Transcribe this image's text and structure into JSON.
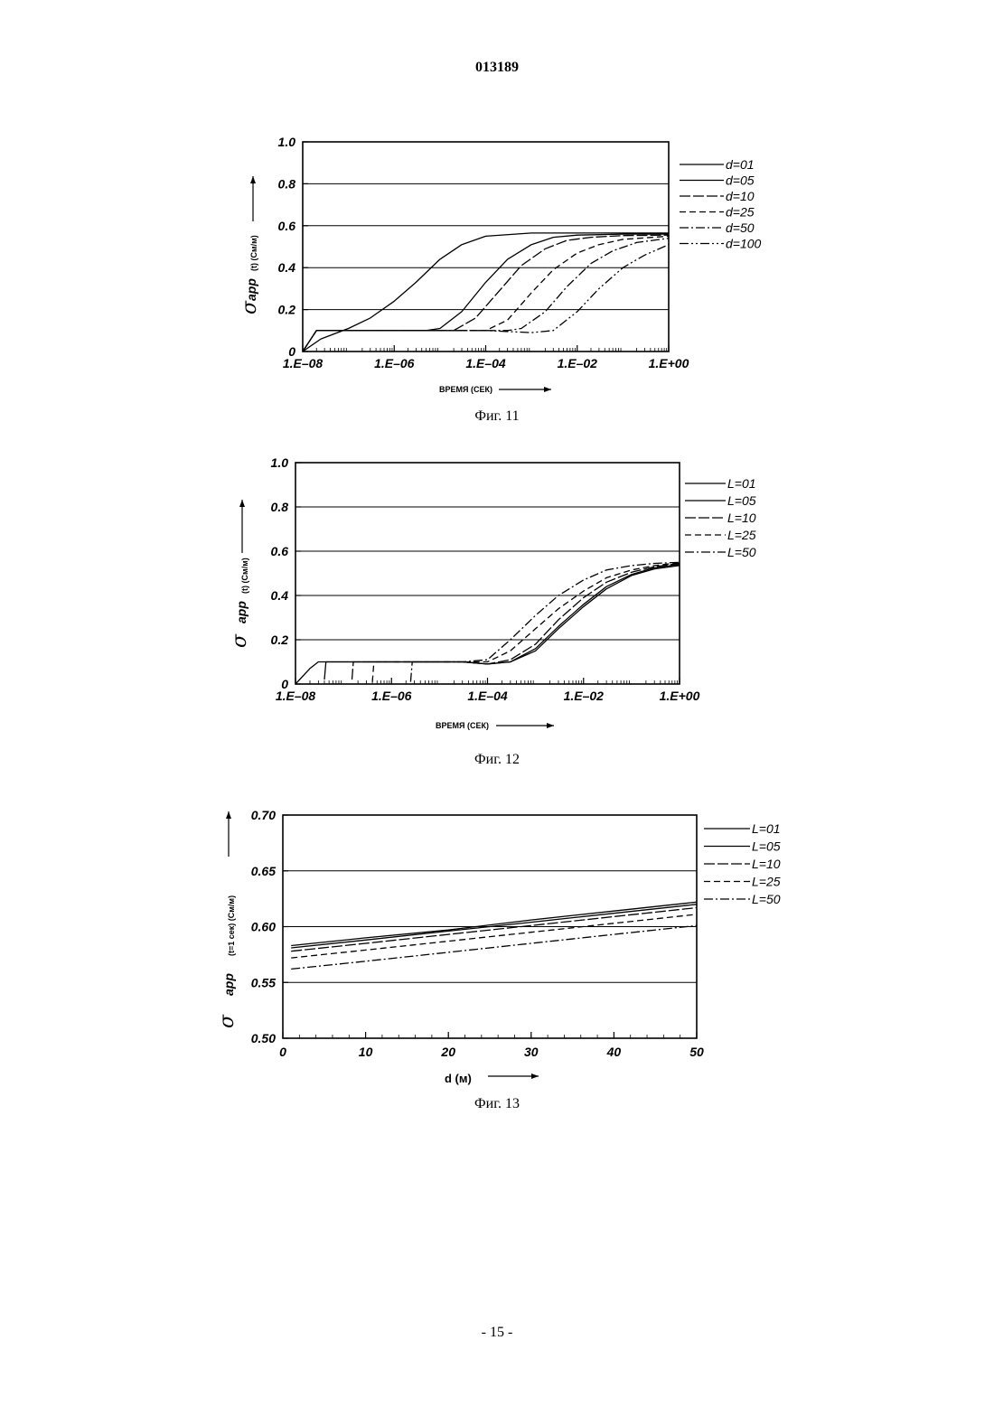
{
  "header": {
    "doc_number": "013189"
  },
  "footer": {
    "page_number": "- 15 -"
  },
  "chart_data": [
    {
      "type": "line",
      "caption": "Фиг. 11",
      "title": "",
      "xlabel": "ВРЕМЯ (СЕК)",
      "ylabel": {
        "symbol": "σ",
        "subscript": "app",
        "unit": "(t) (См/м)"
      },
      "x_scale": "log",
      "xlim": [
        1e-08,
        1
      ],
      "ylim": [
        0,
        1.0
      ],
      "x_tick_labels": [
        "1.E–08",
        "1.E–06",
        "1.E–04",
        "1.E–02",
        "1.E+00"
      ],
      "x_ticks": [
        1e-08,
        1e-06,
        0.0001,
        0.01,
        1
      ],
      "y_tick_labels": [
        "0",
        "0.2",
        "0.4",
        "0.6",
        "0.8",
        "1.0"
      ],
      "y_ticks": [
        0,
        0.2,
        0.4,
        0.6,
        0.8,
        1.0
      ],
      "grid": "horizontal",
      "legend_position": "right",
      "series": [
        {
          "name": "d=01",
          "dash": "solid",
          "x": [
            1e-08,
            2.5e-08,
            1e-07,
            3e-07,
            1e-06,
            3e-06,
            1e-05,
            3e-05,
            0.0001,
            0.001,
            0.01,
            1
          ],
          "y": [
            0,
            0.06,
            0.11,
            0.16,
            0.24,
            0.33,
            0.44,
            0.51,
            0.55,
            0.565,
            0.565,
            0.565
          ]
        },
        {
          "name": "d=05",
          "dash": "solid",
          "x": [
            1e-08,
            2e-08,
            1e-07,
            1e-06,
            5e-06,
            1e-05,
            3e-05,
            0.0001,
            0.0003,
            0.001,
            0.003,
            0.01,
            0.1,
            1
          ],
          "y": [
            0,
            0.1,
            0.1,
            0.1,
            0.1,
            0.11,
            0.19,
            0.33,
            0.44,
            0.51,
            0.545,
            0.555,
            0.56,
            0.56
          ]
        },
        {
          "name": "d=10",
          "dash": "longdash",
          "x": [
            1e-08,
            2e-08,
            1e-07,
            1e-06,
            1e-05,
            2e-05,
            6e-05,
            0.0002,
            0.0006,
            0.002,
            0.006,
            0.02,
            0.1,
            1
          ],
          "y": [
            0,
            0.1,
            0.1,
            0.1,
            0.1,
            0.1,
            0.16,
            0.29,
            0.41,
            0.49,
            0.53,
            0.545,
            0.553,
            0.555
          ]
        },
        {
          "name": "d=25",
          "dash": "dash",
          "x": [
            1e-08,
            2e-08,
            1e-07,
            1e-06,
            1e-05,
            5e-05,
            0.0001,
            0.0003,
            0.001,
            0.003,
            0.01,
            0.03,
            0.1,
            1
          ],
          "y": [
            0,
            0.1,
            0.1,
            0.1,
            0.1,
            0.1,
            0.1,
            0.15,
            0.28,
            0.39,
            0.47,
            0.51,
            0.535,
            0.55
          ]
        },
        {
          "name": "d=50",
          "dash": "dashdot",
          "x": [
            1e-08,
            2e-08,
            1e-07,
            1e-06,
            1e-05,
            0.0001,
            0.0003,
            0.0006,
            0.002,
            0.006,
            0.02,
            0.06,
            0.2,
            1
          ],
          "y": [
            0,
            0.1,
            0.1,
            0.1,
            0.1,
            0.1,
            0.1,
            0.11,
            0.19,
            0.31,
            0.42,
            0.48,
            0.52,
            0.54
          ]
        },
        {
          "name": "d=100",
          "dash": "dashdotdot",
          "x": [
            1e-08,
            2e-08,
            1e-07,
            1e-06,
            1e-05,
            0.0001,
            0.001,
            0.003,
            0.01,
            0.03,
            0.1,
            0.3,
            1
          ],
          "y": [
            0,
            0.1,
            0.1,
            0.1,
            0.1,
            0.1,
            0.09,
            0.1,
            0.19,
            0.3,
            0.4,
            0.46,
            0.51
          ]
        }
      ]
    },
    {
      "type": "line",
      "caption": "Фиг. 12",
      "title": "",
      "xlabel": "ВРЕМЯ (СЕК)",
      "ylabel": {
        "symbol": "σ",
        "subscript": "app",
        "unit": "(t) (См/м)"
      },
      "x_scale": "log",
      "xlim": [
        1e-08,
        1
      ],
      "ylim": [
        0,
        1.0
      ],
      "x_tick_labels": [
        "1.E–08",
        "1.E–06",
        "1.E–04",
        "1.E–02",
        "1.E+00"
      ],
      "x_ticks": [
        1e-08,
        1e-06,
        0.0001,
        0.01,
        1
      ],
      "y_tick_labels": [
        "0",
        "0.2",
        "0.4",
        "0.6",
        "0.8",
        "1.0"
      ],
      "y_ticks": [
        0,
        0.2,
        0.4,
        0.6,
        0.8,
        1.0
      ],
      "grid": "horizontal",
      "legend_position": "right",
      "series": [
        {
          "name": "L=01",
          "dash": "solid",
          "x": [
            1e-08,
            2e-08,
            3e-08,
            1e-07,
            1e-06,
            1e-05,
            3e-05,
            0.0001,
            0.0003,
            0.001,
            0.003,
            0.01,
            0.03,
            0.1,
            0.3,
            1
          ],
          "y": [
            0,
            0.07,
            0.1,
            0.1,
            0.1,
            0.1,
            0.1,
            0.09,
            0.1,
            0.15,
            0.25,
            0.35,
            0.43,
            0.49,
            0.52,
            0.535
          ]
        },
        {
          "name": "L=05",
          "dash": "solid",
          "x": [
            4e-08,
            4.3e-08,
            1e-07,
            1e-06,
            1e-05,
            3e-05,
            0.0001,
            0.0003,
            0.001,
            0.003,
            0.01,
            0.03,
            0.1,
            0.3,
            1
          ],
          "y": [
            0.02,
            0.1,
            0.1,
            0.1,
            0.1,
            0.1,
            0.09,
            0.1,
            0.16,
            0.26,
            0.36,
            0.44,
            0.495,
            0.525,
            0.54
          ]
        },
        {
          "name": "L=10",
          "dash": "longdash",
          "x": [
            1.5e-07,
            1.6e-07,
            1e-06,
            1e-05,
            3e-05,
            0.0001,
            0.0003,
            0.001,
            0.003,
            0.01,
            0.03,
            0.1,
            0.3,
            1
          ],
          "y": [
            0.02,
            0.1,
            0.1,
            0.1,
            0.1,
            0.09,
            0.11,
            0.18,
            0.29,
            0.39,
            0.46,
            0.505,
            0.53,
            0.545
          ]
        },
        {
          "name": "L=25",
          "dash": "dash",
          "x": [
            4e-07,
            4.3e-07,
            1e-06,
            3e-06,
            1e-05,
            3e-05,
            0.0001,
            0.0003,
            0.001,
            0.003,
            0.01,
            0.03,
            0.1,
            0.3,
            1
          ],
          "y": [
            0.01,
            0.1,
            0.1,
            0.1,
            0.1,
            0.1,
            0.1,
            0.15,
            0.25,
            0.34,
            0.42,
            0.48,
            0.515,
            0.535,
            0.548
          ]
        },
        {
          "name": "L=50",
          "dash": "dashdot",
          "x": [
            2.5e-06,
            2.7e-06,
            5e-06,
            1e-05,
            3e-05,
            0.0001,
            0.0003,
            0.001,
            0.003,
            0.01,
            0.03,
            0.1,
            0.3,
            1
          ],
          "y": [
            0.01,
            0.1,
            0.1,
            0.1,
            0.1,
            0.11,
            0.2,
            0.31,
            0.4,
            0.47,
            0.515,
            0.535,
            0.545,
            0.55
          ]
        }
      ]
    },
    {
      "type": "line",
      "caption": "Фиг. 13",
      "title": "",
      "xlabel": "d (м)",
      "ylabel": {
        "symbol": "σ",
        "subscript": "app",
        "unit": "(t=1 сек) (См/м)"
      },
      "x_scale": "linear",
      "xlim": [
        0,
        50
      ],
      "ylim": [
        0.5,
        0.7
      ],
      "x_tick_labels": [
        "0",
        "10",
        "20",
        "30",
        "40",
        "50"
      ],
      "x_ticks": [
        0,
        10,
        20,
        30,
        40,
        50
      ],
      "y_tick_labels": [
        "0.50",
        "0.55",
        "0.60",
        "0.65",
        "0.70"
      ],
      "y_ticks": [
        0.5,
        0.55,
        0.6,
        0.65,
        0.7
      ],
      "grid": "horizontal",
      "legend_position": "right",
      "series": [
        {
          "name": "L=01",
          "dash": "solid",
          "x": [
            1,
            10,
            20,
            30,
            40,
            50
          ],
          "y": [
            0.583,
            0.59,
            0.597,
            0.606,
            0.614,
            0.622
          ]
        },
        {
          "name": "L=05",
          "dash": "solid",
          "x": [
            1,
            10,
            20,
            30,
            40,
            50
          ],
          "y": [
            0.581,
            0.588,
            0.596,
            0.604,
            0.612,
            0.62
          ]
        },
        {
          "name": "L=10",
          "dash": "longdash",
          "x": [
            1,
            10,
            20,
            30,
            40,
            50
          ],
          "y": [
            0.578,
            0.585,
            0.593,
            0.601,
            0.609,
            0.617
          ]
        },
        {
          "name": "L=25",
          "dash": "dash",
          "x": [
            1,
            10,
            20,
            30,
            40,
            50
          ],
          "y": [
            0.572,
            0.579,
            0.587,
            0.595,
            0.603,
            0.611
          ]
        },
        {
          "name": "L=50",
          "dash": "dashdot",
          "x": [
            1,
            10,
            20,
            30,
            40,
            50
          ],
          "y": [
            0.562,
            0.569,
            0.577,
            0.585,
            0.593,
            0.601
          ]
        }
      ]
    }
  ]
}
